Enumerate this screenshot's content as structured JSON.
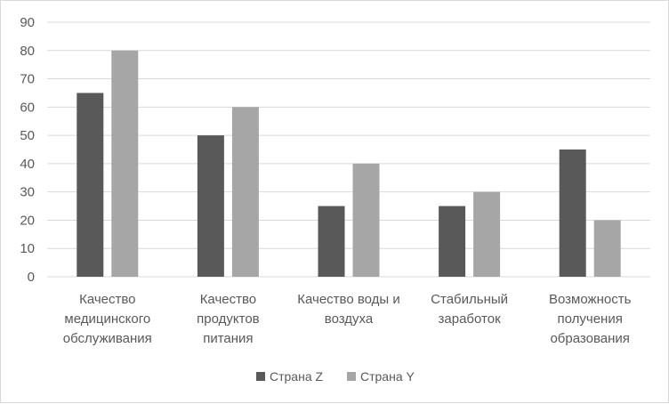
{
  "chart_data": {
    "type": "bar",
    "title": "",
    "xlabel": "",
    "ylabel": "",
    "categories": [
      [
        "Качество",
        "медицинского",
        "обслуживания"
      ],
      [
        "Качество",
        "продуктов",
        "питания"
      ],
      [
        "Качество воды и",
        "воздуха"
      ],
      [
        "Стабильный",
        "заработок"
      ],
      [
        "Возможность",
        "получения",
        "образования"
      ]
    ],
    "series": [
      {
        "name": "Страна Z",
        "values": [
          65,
          50,
          25,
          25,
          45
        ],
        "color": "#595959"
      },
      {
        "name": "Страна Y",
        "values": [
          80,
          60,
          40,
          30,
          20
        ],
        "color": "#a6a6a6"
      }
    ],
    "ylim": [
      0,
      90
    ],
    "yticks": [
      0,
      10,
      20,
      30,
      40,
      50,
      60,
      70,
      80,
      90
    ],
    "grid": true,
    "legend_position": "bottom",
    "gridline_color": "#d9d9d9"
  }
}
